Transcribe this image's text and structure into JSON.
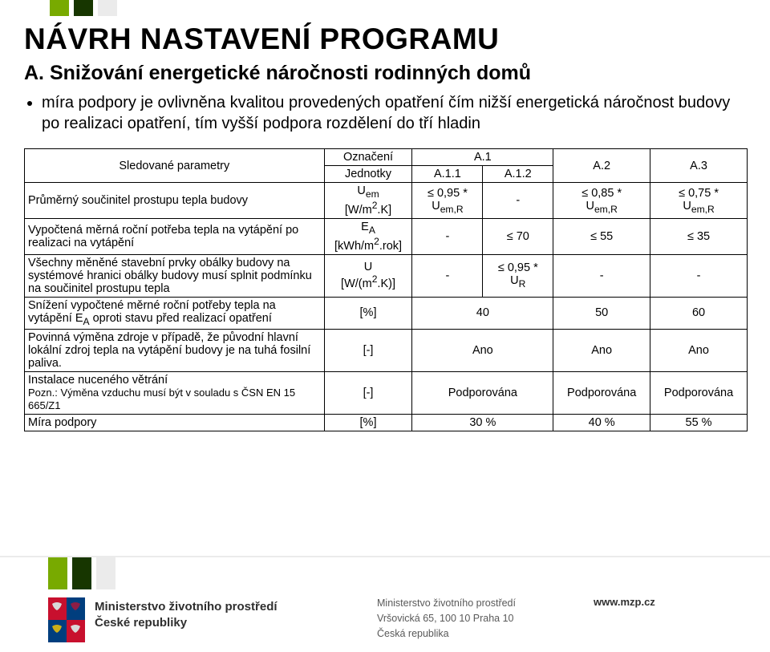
{
  "colors": {
    "bar_green": "#78aa00",
    "bar_dark": "#173600",
    "bar_gray": "#ebebeb",
    "emblem_red": "#c8102e",
    "emblem_white": "#ffffff",
    "emblem_blue": "#003e7e",
    "emblem_lion": "#d9d9d9"
  },
  "heading": "NÁVRH NASTAVENÍ PROGRAMU",
  "subheading": "A. Snižování energetické náročnosti rodinných domů",
  "bullet": "míra podpory je ovlivněna kvalitou provedených opatření čím nižší energetická náročnost budovy po realizaci opatření, tím vyšší podpora rozdělení do tří hladin",
  "table": {
    "header": {
      "param": "Sledované parametry",
      "col_unit_top": "Označení",
      "col_unit_bottom": "Jednotky",
      "a1": "A.1",
      "a11": "A.1.1",
      "a12": "A.1.2",
      "a2": "A.2",
      "a3": "A.3"
    },
    "rows": [
      {
        "param": "Průměrný součinitel prostupu tepla budovy",
        "unit_html": "U<sub>em</sub><br>[W/m<sup>2</sup>.K]",
        "a11_html": "≤ 0,95 *<br>U<sub>em,R</sub>",
        "a12": "-",
        "a2_html": "≤ 0,85 *<br>U<sub>em,R</sub>",
        "a3_html": "≤ 0,75 *<br>U<sub>em,R</sub>"
      },
      {
        "param": "Vypočtená měrná roční potřeba tepla na vytápění po realizaci na vytápění",
        "unit_html": "E<sub>A</sub><br>[kWh/m<sup>2</sup>.rok]",
        "a11": "-",
        "a12": "≤ 70",
        "a2": "≤ 55",
        "a3": "≤ 35"
      },
      {
        "param": "Všechny měněné stavební prvky obálky budovy na systémové hranici obálky budovy musí splnit podmínku na součinitel prostupu tepla",
        "unit_html": "U<br>[W/(m<sup>2</sup>.K)]",
        "a11": "-",
        "a12_html": "≤ 0,95 *<br>U<sub>R</sub>",
        "a2": "-",
        "a3": "-"
      },
      {
        "param_html": "Snížení vypočtené měrné roční potřeby tepla na vytápění E<sub>A</sub> oproti stavu před realizací opatření",
        "unit": "[%]",
        "a1": "40",
        "a2": "50",
        "a3": "60"
      },
      {
        "param": "Povinná výměna zdroje v případě, že původní hlavní lokální zdroj tepla na vytápění budovy je na tuhá fosilní paliva.",
        "unit": "[-]",
        "a1": "Ano",
        "a2": "Ano",
        "a3": "Ano"
      },
      {
        "param_html": "Instalace nuceného větrání<br><span style='font-size:13px'>Pozn.: Výměna vzduchu musí být v souladu s  ČSN EN 15 665/Z1</span>",
        "unit": "[-]",
        "a1": "Podporována",
        "a2": "Podporována",
        "a3": "Podporována"
      },
      {
        "param": "Míra podpory",
        "unit": "[%]",
        "a1": "30 %",
        "a2": "40 %",
        "a3": "55 %"
      }
    ]
  },
  "footer": {
    "left_line1": "Ministerstvo životního prostředí",
    "left_line2": "České republiky",
    "mid_line1": "Ministerstvo životního prostředí",
    "mid_line2": "Vršovická 65, 100 10 Praha 10",
    "mid_line3": "Česká republika",
    "right": "www.mzp.cz"
  }
}
